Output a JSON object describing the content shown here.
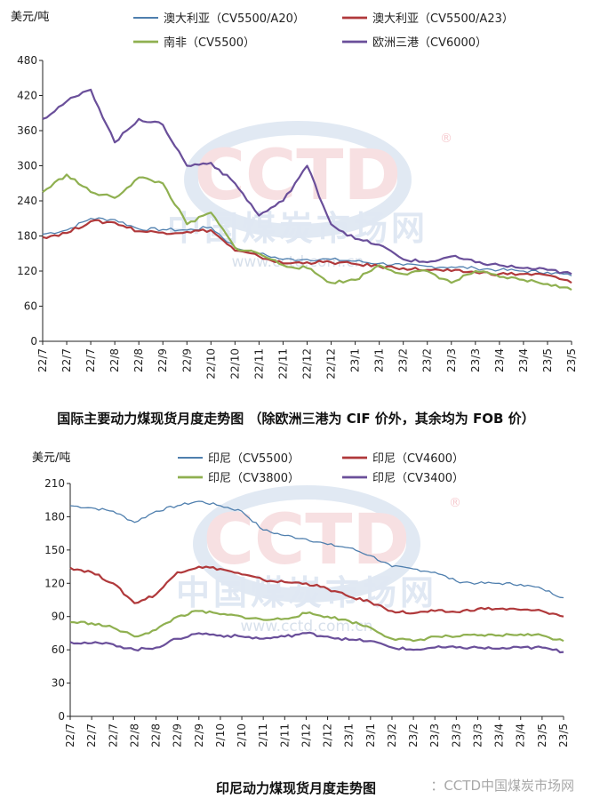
{
  "chart_data": [
    {
      "type": "line",
      "unit": "美元/吨",
      "caption": "国际主要动力煤现货月度走势图 （除欧洲三港为 CIF 价外，其余均为 FOB 价）",
      "ylim": [
        0,
        480
      ],
      "yticks": [
        0,
        60,
        120,
        180,
        240,
        300,
        360,
        420,
        480
      ],
      "categories": [
        "22/7",
        "22/7",
        "22/7",
        "22/8",
        "22/8",
        "22/9",
        "22/9",
        "22/10",
        "22/10",
        "22/11",
        "22/11",
        "22/12",
        "22/12",
        "23/1",
        "23/1",
        "23/2",
        "23/2",
        "23/3",
        "23/3",
        "23/4",
        "23/4",
        "23/5",
        "23/5"
      ],
      "legend": "top",
      "grid": false,
      "series": [
        {
          "name": "澳大利亚（CV5500/A20）",
          "color": "#4f7fae",
          "width": 1.3,
          "values": [
            183,
            190,
            210,
            208,
            192,
            191,
            190,
            195,
            160,
            150,
            140,
            140,
            140,
            137,
            133,
            130,
            128,
            127,
            125,
            122,
            120,
            118,
            112
          ]
        },
        {
          "name": "澳大利亚（CV5500/A23）",
          "color": "#b0393b",
          "width": 2.2,
          "values": [
            178,
            185,
            205,
            203,
            188,
            186,
            187,
            190,
            155,
            145,
            133,
            135,
            135,
            132,
            128,
            125,
            122,
            120,
            118,
            115,
            115,
            113,
            100
          ]
        },
        {
          "name": "南非（CV5500）",
          "color": "#8fb050",
          "width": 2.2,
          "values": [
            255,
            285,
            255,
            245,
            280,
            270,
            200,
            220,
            160,
            150,
            130,
            125,
            100,
            105,
            130,
            115,
            120,
            100,
            120,
            110,
            105,
            98,
            88
          ]
        },
        {
          "name": "欧洲三港（CV6000）",
          "color": "#6a4f9a",
          "width": 2.2,
          "values": [
            380,
            410,
            430,
            340,
            380,
            370,
            300,
            305,
            270,
            215,
            240,
            300,
            200,
            175,
            165,
            140,
            135,
            145,
            135,
            130,
            125,
            122,
            115
          ]
        }
      ]
    },
    {
      "type": "line",
      "unit": "美元/吨",
      "caption": "印尼动力煤现货月度走势图",
      "ylim": [
        0,
        210
      ],
      "yticks": [
        0,
        30,
        60,
        90,
        120,
        150,
        180,
        210
      ],
      "categories": [
        "22/7",
        "22/7",
        "22/7",
        "22/8",
        "22/8",
        "22/9",
        "22/9",
        "22/10",
        "22/10",
        "22/11",
        "22/11",
        "22/12",
        "22/12",
        "23/1",
        "23/1",
        "23/2",
        "23/2",
        "23/3",
        "23/3",
        "23/3",
        "23/4",
        "23/4",
        "23/5",
        "23/5"
      ],
      "legend": "top",
      "grid": false,
      "series": [
        {
          "name": "印尼（CV5500）",
          "color": "#4f7fae",
          "width": 1.3,
          "values": [
            190,
            188,
            185,
            175,
            185,
            190,
            194,
            190,
            185,
            168,
            163,
            160,
            155,
            152,
            145,
            135,
            133,
            130,
            122,
            120,
            120,
            119,
            115,
            107
          ]
        },
        {
          "name": "印尼（CV4600）",
          "color": "#b0393b",
          "width": 2.2,
          "values": [
            134,
            130,
            120,
            102,
            110,
            130,
            135,
            133,
            128,
            123,
            121,
            120,
            115,
            108,
            103,
            95,
            93,
            95,
            94,
            97,
            97,
            96,
            95,
            90
          ]
        },
        {
          "name": "印尼（CV3800）",
          "color": "#8fb050",
          "width": 2.2,
          "values": [
            85,
            84,
            80,
            72,
            78,
            90,
            95,
            92,
            90,
            87,
            88,
            93,
            90,
            86,
            80,
            70,
            68,
            72,
            72,
            73,
            73,
            74,
            73,
            68
          ]
        },
        {
          "name": "印尼（CV3400）",
          "color": "#6a4f9a",
          "width": 2.2,
          "values": [
            67,
            66,
            65,
            60,
            62,
            70,
            75,
            73,
            72,
            70,
            72,
            75,
            72,
            69,
            68,
            62,
            60,
            62,
            62,
            62,
            61,
            62,
            62,
            58
          ]
        }
      ]
    }
  ],
  "watermark": {
    "logo": "CCTD",
    "name": "中国煤炭市场网",
    "url": "www.cctd.com.cn",
    "registered": "®"
  },
  "footer": "：CCTD中国煤炭市场网"
}
